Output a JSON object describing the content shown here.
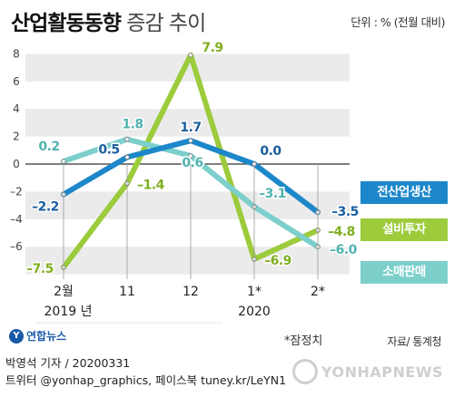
{
  "header": {
    "title_bold": "산업활동동향",
    "title_light": "증감 추이",
    "unit": "단위 : % (전월 대비)"
  },
  "chart_data": {
    "type": "line",
    "categories": [
      "2월",
      "11",
      "12",
      "1*",
      "2*"
    ],
    "year_labels": [
      "2019 년",
      "2020"
    ],
    "ylim": [
      -8,
      8
    ],
    "yticks": [
      8,
      6,
      4,
      2,
      0,
      -2,
      -4,
      -6
    ],
    "ytick_labels": [
      "8",
      "6",
      "4",
      "2",
      "0",
      "–2",
      "–4",
      "–6"
    ],
    "grid": "horizontal bands",
    "legend_placement": "right",
    "series": [
      {
        "name": "전산업생산",
        "color": "#1c87c9",
        "values": [
          -2.2,
          0.5,
          1.7,
          0.0,
          -3.5
        ],
        "labels": [
          "–2.2",
          "0.5",
          "1.7",
          "0.0",
          "–3.5"
        ]
      },
      {
        "name": "설비투자",
        "color": "#9ccb3b",
        "values": [
          -7.5,
          -1.4,
          7.9,
          -6.9,
          -4.8
        ],
        "labels": [
          "–7.5",
          "–1.4",
          "7.9",
          "–6.9",
          "–4.8"
        ]
      },
      {
        "name": "소매판매",
        "color": "#7ccfcb",
        "values": [
          0.2,
          1.8,
          0.6,
          -3.1,
          -6.0
        ],
        "labels": [
          "0.2",
          "1.8",
          "0.6",
          "–3.1",
          "–6.0"
        ]
      }
    ]
  },
  "notes": {
    "preliminary": "*잠정치",
    "source": "자료/ 통계청",
    "brand": "연합뉴스"
  },
  "footer": {
    "byline": "박영석 기자 / 20200331",
    "social": "트위터 @yonhap_graphics, 페이스북 tuney.kr/LeYN1",
    "logo": "YONHAPNEWS"
  }
}
